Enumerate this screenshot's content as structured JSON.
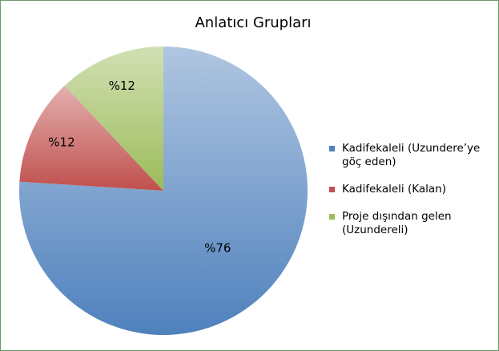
{
  "chart_data": {
    "type": "pie",
    "title": "Anlatıcı Grupları",
    "categories": [
      "Kadifekaleli  (Uzundere’ye göç eden)",
      "Kadifekaleli (Kalan)",
      "Proje dışından gelen (Uzundereli)"
    ],
    "values": [
      76,
      12,
      12
    ],
    "value_labels": [
      "%76",
      "%12",
      "%12"
    ],
    "colors": [
      "#4f81bd",
      "#c0504d",
      "#9bbb59"
    ],
    "legend": "right"
  }
}
